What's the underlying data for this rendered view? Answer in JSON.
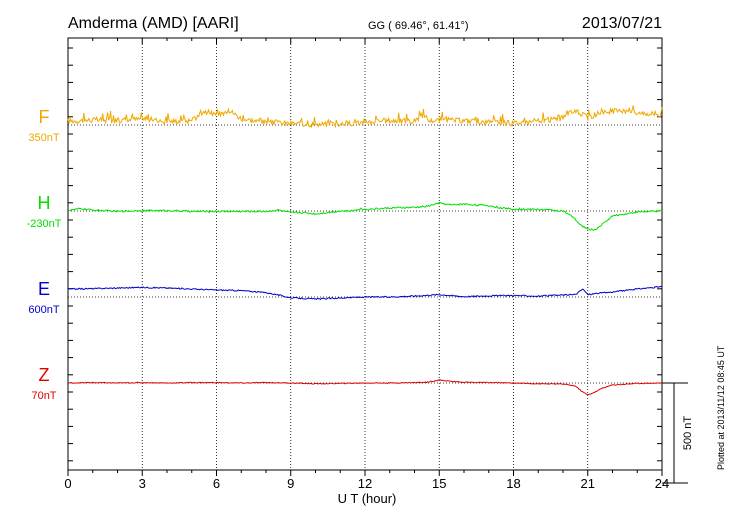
{
  "header": {
    "station": "Amderma (AMD)  [AARI]",
    "coords": "GG ( 69.46°,  61.41°)",
    "date": "2013/07/21"
  },
  "footer": {
    "plotted": "Plotted at 2013/11/12 08:45 UT"
  },
  "chart_data": {
    "type": "line",
    "xlabel": "U T (hour)",
    "xlim": [
      0,
      24
    ],
    "xticks": [
      0,
      3,
      6,
      9,
      12,
      15,
      18,
      21,
      24
    ],
    "scale_bar": {
      "label": "500 nT",
      "value": 500
    },
    "grid": "dotted vertical every 3 hours, dotted baseline per component",
    "colors": {
      "F": "#f0a800",
      "H": "#00e000",
      "E": "#0000cc",
      "Z": "#e00000"
    },
    "series": [
      {
        "name": "F",
        "baseline_label": "350nT",
        "baseline": 350,
        "noise": 14,
        "x": [
          0,
          1,
          2,
          3,
          4,
          5,
          5.5,
          6,
          6.5,
          7,
          8,
          9,
          10,
          11,
          12,
          13,
          14,
          14.35,
          14.5,
          15,
          16,
          17,
          18,
          19,
          20,
          20.5,
          21,
          21.5,
          22,
          23,
          24
        ],
        "y": [
          370,
          375,
          372,
          380,
          368,
          372,
          420,
          398,
          425,
          382,
          362,
          358,
          352,
          356,
          365,
          372,
          368,
          400,
          372,
          375,
          372,
          362,
          360,
          368,
          385,
          425,
          385,
          412,
          420,
          415,
          400
        ]
      },
      {
        "name": "H",
        "baseline_label": "-230nT",
        "baseline": -230,
        "noise": 4,
        "x": [
          0,
          0.5,
          1,
          2,
          3,
          4,
          5,
          6,
          7,
          8,
          8.5,
          9,
          9.5,
          10,
          10.3,
          11,
          11.5,
          11.8,
          12,
          13,
          14,
          14.5,
          15,
          15.5,
          16,
          16.5,
          17,
          17.5,
          18,
          19,
          19.5,
          20,
          20.4,
          20.7,
          21,
          21.3,
          21.6,
          22,
          23,
          24
        ],
        "y": [
          -228,
          -218,
          -225,
          -232,
          -228,
          -228,
          -232,
          -232,
          -232,
          -232,
          -225,
          -238,
          -238,
          -245,
          -240,
          -230,
          -230,
          -218,
          -222,
          -215,
          -212,
          -207,
          -190,
          -200,
          -195,
          -200,
          -203,
          -215,
          -220,
          -222,
          -225,
          -230,
          -260,
          -300,
          -320,
          -325,
          -295,
          -255,
          -235,
          -230
        ]
      },
      {
        "name": "E",
        "baseline_label": "600nT",
        "baseline": 600,
        "noise": 3,
        "x": [
          0,
          1,
          2,
          3,
          4,
          5,
          6,
          7,
          8,
          8.5,
          9,
          10,
          11,
          12,
          13,
          14,
          15,
          16,
          17,
          18,
          19,
          20,
          20.5,
          20.8,
          21,
          21.5,
          22,
          23,
          24
        ],
        "y": [
          640,
          642,
          645,
          648,
          645,
          640,
          635,
          632,
          622,
          610,
          596,
          590,
          595,
          600,
          600,
          605,
          612,
          602,
          606,
          608,
          604,
          610,
          612,
          640,
          612,
          620,
          625,
          640,
          652
        ]
      },
      {
        "name": "Z",
        "baseline_label": "70nT",
        "baseline": 70,
        "noise": 2,
        "x": [
          0,
          1,
          2,
          3,
          4,
          5,
          6,
          7,
          8,
          9,
          10,
          11,
          12,
          13,
          14,
          14.5,
          15,
          15.5,
          16,
          17,
          18,
          19,
          20,
          20.5,
          20.8,
          21,
          21.3,
          21.6,
          22,
          23,
          24
        ],
        "y": [
          70,
          72,
          70,
          72,
          70,
          72,
          72,
          70,
          72,
          70,
          66,
          68,
          70,
          70,
          72,
          74,
          85,
          78,
          74,
          72,
          70,
          66,
          65,
          55,
          25,
          10,
          25,
          45,
          60,
          68,
          70
        ]
      }
    ]
  }
}
